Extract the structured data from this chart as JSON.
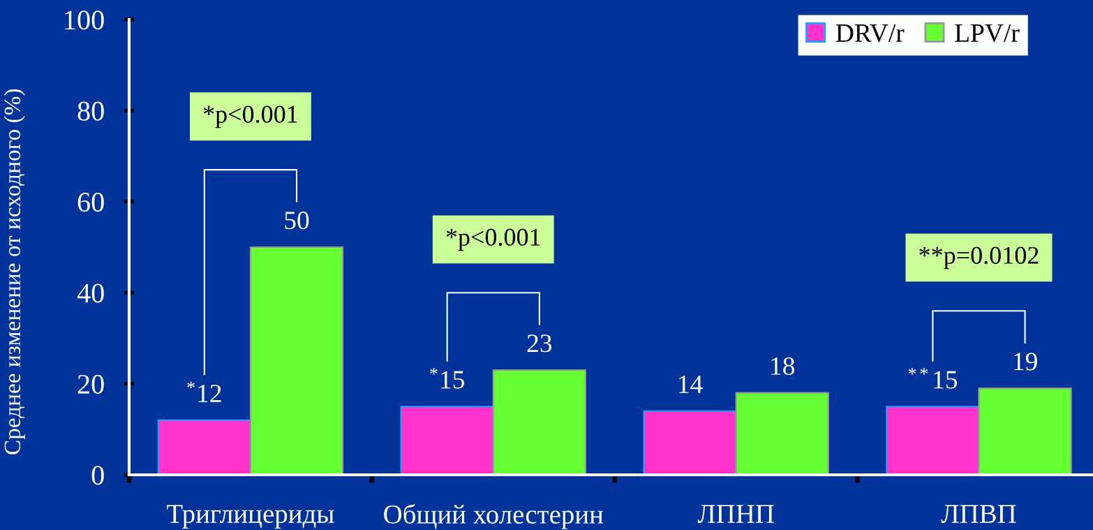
{
  "chart_data": {
    "type": "bar",
    "ylabel": "Среднее изменение от исходного (%)",
    "categories": [
      "Триглицериды",
      "Общий холестерин",
      "ЛПНП",
      "ЛПВП"
    ],
    "series": [
      {
        "name": "DRV/r",
        "color": "#ff33cc",
        "values": [
          12,
          15,
          14,
          15
        ],
        "value_labels": [
          "$^{*}$12",
          "$^{*}$15",
          "14",
          "$^{**}$15"
        ]
      },
      {
        "name": "LPV/r",
        "color": "#66ff33",
        "values": [
          50,
          23,
          18,
          19
        ],
        "value_labels": [
          "50",
          "23",
          "18",
          "19"
        ]
      }
    ],
    "ylim": [
      0,
      100
    ],
    "yticks": [
      0,
      20,
      40,
      60,
      80,
      100
    ],
    "legend": "top right",
    "annotations": [
      "*p<0.001",
      "*p<0.001",
      "**p=0.0102"
    ]
  }
}
